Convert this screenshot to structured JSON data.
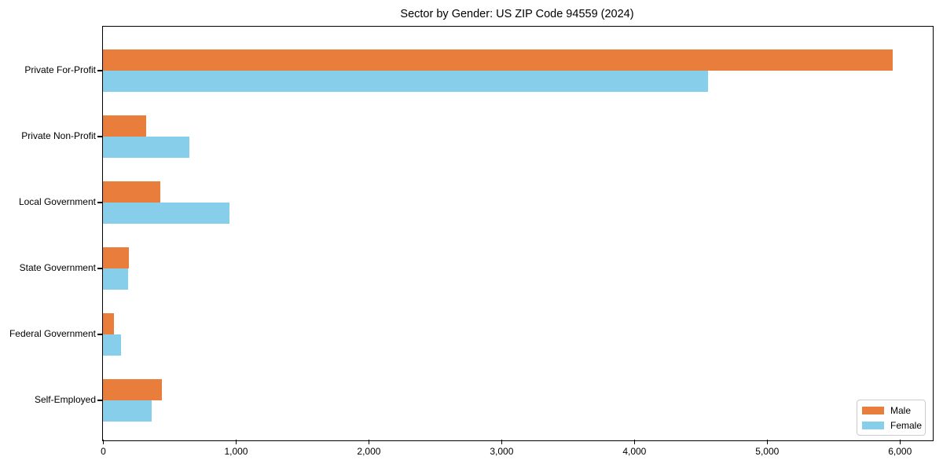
{
  "chart_data": {
    "type": "bar",
    "orientation": "horizontal",
    "title": "Sector by Gender: US ZIP Code 94559 (2024)",
    "categories": [
      "Private For-Profit",
      "Private Non-Profit",
      "Local Government",
      "State Government",
      "Federal Government",
      "Self-Employed"
    ],
    "series": [
      {
        "name": "Male",
        "color": "#e87d3c",
        "values": [
          5950,
          325,
          435,
          195,
          80,
          445
        ]
      },
      {
        "name": "Female",
        "color": "#87ceeb",
        "values": [
          4560,
          650,
          955,
          190,
          135,
          365
        ]
      }
    ],
    "xlabel": "",
    "ylabel": "",
    "xlim": [
      0,
      6250
    ],
    "x_ticks": [
      0,
      1000,
      2000,
      3000,
      4000,
      5000,
      6000
    ],
    "x_tick_labels": [
      "0",
      "1,000",
      "2,000",
      "3,000",
      "4,000",
      "5,000",
      "6,000"
    ],
    "grid": false,
    "background_color": "#ffffff",
    "spine_color": "#000000",
    "legend": {
      "position": "lower right",
      "entries": [
        "Male",
        "Female"
      ]
    }
  }
}
